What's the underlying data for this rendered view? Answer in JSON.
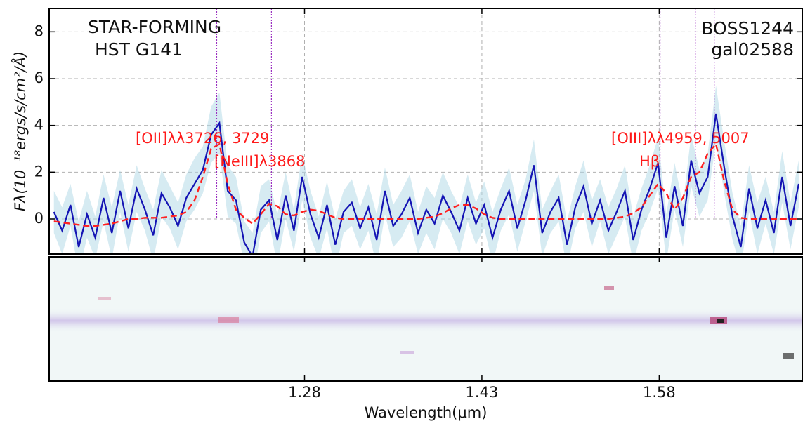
{
  "chart_data": {
    "type": "line",
    "annotations": [
      "STAR-FORMING",
      "HST G141",
      "BOSS1244",
      "gal02588"
    ],
    "line_labels": [
      "[OII]λλ3726, 3729",
      "[NeIII]λ3868",
      "[OIII]λλ4959, 5007",
      "Hβ"
    ],
    "xlabel": "Wavelength(μm)",
    "ylabel": "Fλ(10⁻¹⁸ergs/s/cm²/Å)",
    "xlim": [
      1.064,
      1.701
    ],
    "ylim": [
      -1.5,
      9
    ],
    "xticks": [
      1.28,
      1.43,
      1.58
    ],
    "yticks": [
      0,
      2,
      4,
      6,
      8
    ],
    "grid": true,
    "line_positions": [
      1.2057,
      1.252,
      1.5807,
      1.6105,
      1.6265
    ],
    "line_color": "#9b30c0",
    "x": [
      1.068,
      1.075,
      1.082,
      1.089,
      1.096,
      1.103,
      1.11,
      1.117,
      1.124,
      1.131,
      1.138,
      1.145,
      1.152,
      1.159,
      1.166,
      1.173,
      1.18,
      1.187,
      1.194,
      1.201,
      1.208,
      1.215,
      1.222,
      1.229,
      1.236,
      1.243,
      1.25,
      1.257,
      1.264,
      1.271,
      1.278,
      1.285,
      1.292,
      1.299,
      1.306,
      1.313,
      1.32,
      1.327,
      1.334,
      1.341,
      1.348,
      1.355,
      1.362,
      1.369,
      1.376,
      1.383,
      1.39,
      1.397,
      1.404,
      1.411,
      1.418,
      1.425,
      1.432,
      1.439,
      1.446,
      1.453,
      1.46,
      1.467,
      1.474,
      1.481,
      1.488,
      1.495,
      1.502,
      1.509,
      1.516,
      1.523,
      1.53,
      1.537,
      1.544,
      1.551,
      1.558,
      1.565,
      1.572,
      1.579,
      1.586,
      1.593,
      1.6,
      1.607,
      1.614,
      1.621,
      1.628,
      1.635,
      1.642,
      1.649,
      1.656,
      1.663,
      1.67,
      1.677,
      1.684,
      1.691,
      1.698
    ],
    "series": [
      {
        "name": "flux",
        "color": "#1414b4",
        "values": [
          0.3,
          -0.5,
          0.6,
          -1.2,
          0.2,
          -0.8,
          0.9,
          -0.6,
          1.2,
          -0.4,
          1.3,
          0.4,
          -0.7,
          1.1,
          0.5,
          -0.3,
          0.9,
          1.5,
          2.1,
          3.6,
          4.1,
          1.2,
          0.8,
          -1.0,
          -1.6,
          0.4,
          0.8,
          -0.9,
          1.0,
          -0.5,
          1.8,
          0.2,
          -0.8,
          0.6,
          -1.1,
          0.3,
          0.7,
          -0.4,
          0.5,
          -0.9,
          1.2,
          -0.3,
          0.2,
          0.9,
          -0.6,
          0.4,
          -0.2,
          1.0,
          0.3,
          -0.5,
          0.9,
          -0.2,
          0.6,
          -0.8,
          0.4,
          1.2,
          -0.4,
          0.8,
          2.3,
          -0.6,
          0.3,
          0.9,
          -1.1,
          0.5,
          1.4,
          -0.2,
          0.8,
          -0.5,
          0.3,
          1.2,
          -0.9,
          0.4,
          1.3,
          2.4,
          -0.8,
          1.4,
          -0.3,
          2.5,
          1.1,
          1.8,
          4.5,
          2.2,
          0.1,
          -1.2,
          1.3,
          -0.4,
          0.8,
          -0.6,
          1.8,
          -0.3,
          1.5
        ],
        "error": [
          0.9,
          1.0,
          0.9,
          1.1,
          1.0,
          0.9,
          1.0,
          1.1,
          0.9,
          1.0,
          1.0,
          0.9,
          1.1,
          1.0,
          0.9,
          1.0,
          1.0,
          1.1,
          1.0,
          1.2,
          1.3,
          1.1,
          1.0,
          0.9,
          1.0,
          1.0,
          0.9,
          1.1,
          1.0,
          0.9,
          1.0,
          1.0,
          0.9,
          1.0,
          1.1,
          0.9,
          1.0,
          0.9,
          1.0,
          1.1,
          1.0,
          0.9,
          1.0,
          1.0,
          0.9,
          1.0,
          1.1,
          1.0,
          0.9,
          1.0,
          1.0,
          0.9,
          1.0,
          1.1,
          0.9,
          1.0,
          1.0,
          0.9,
          1.1,
          1.0,
          0.9,
          1.0,
          1.0,
          0.9,
          1.1,
          1.0,
          0.9,
          1.0,
          1.0,
          1.1,
          1.0,
          0.9,
          1.0,
          1.1,
          1.0,
          1.0,
          0.9,
          1.1,
          1.0,
          1.0,
          1.2,
          1.1,
          1.0,
          0.9,
          1.0,
          1.1,
          1.0,
          0.9,
          1.1,
          1.0,
          1.0
        ],
        "error_color": "#add8e6"
      },
      {
        "name": "model",
        "color": "#ff2020",
        "values": [
          -0.1,
          -0.15,
          -0.2,
          -0.25,
          -0.3,
          -0.3,
          -0.25,
          -0.2,
          -0.1,
          0,
          0,
          0.05,
          0.05,
          0.05,
          0.1,
          0.15,
          0.3,
          0.8,
          1.8,
          3.0,
          3.2,
          1.5,
          0.4,
          0.05,
          -0.2,
          0.2,
          0.65,
          0.55,
          0.2,
          0.15,
          0.3,
          0.4,
          0.35,
          0.2,
          0.05,
          0,
          0,
          0,
          0,
          0,
          0,
          0,
          0,
          0,
          0,
          0.05,
          0.1,
          0.25,
          0.45,
          0.6,
          0.6,
          0.45,
          0.2,
          0.05,
          0,
          0,
          0,
          0,
          0,
          0,
          0,
          0,
          0,
          0,
          0,
          0,
          0,
          0,
          0.05,
          0.1,
          0.25,
          0.5,
          1.0,
          1.5,
          1.1,
          0.4,
          0.9,
          1.8,
          2.0,
          2.8,
          3.2,
          1.6,
          0.4,
          0.05,
          0,
          0,
          0,
          0,
          0,
          0,
          0
        ]
      }
    ]
  }
}
